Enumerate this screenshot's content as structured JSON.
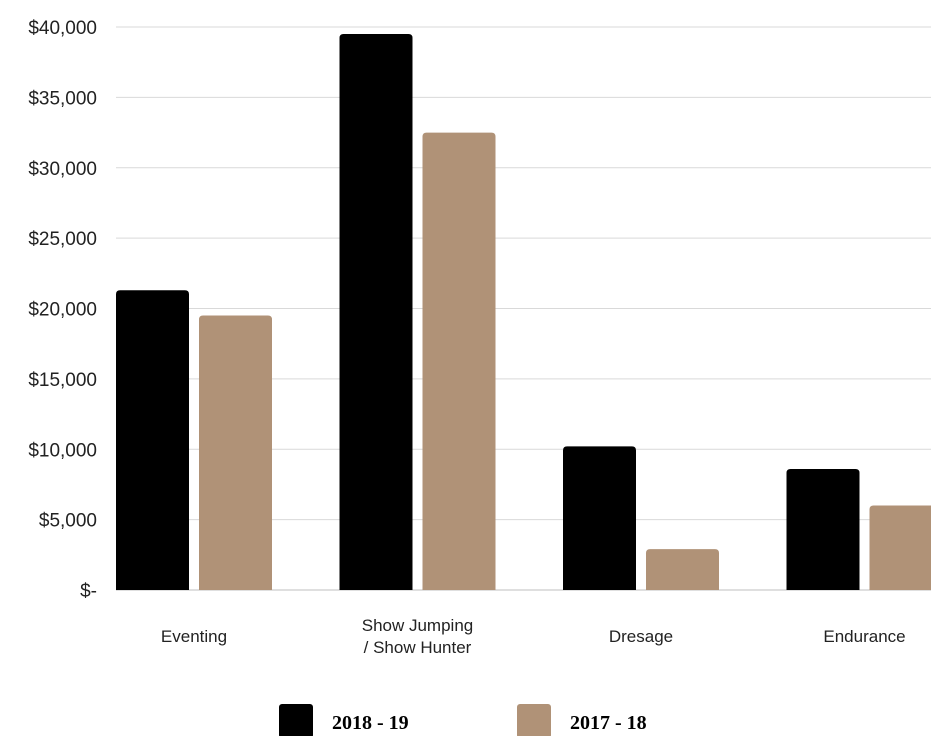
{
  "chart_data": {
    "type": "bar",
    "categories": [
      [
        "Eventing"
      ],
      [
        "Show Jumping",
        "/ Show Hunter"
      ],
      [
        "Dresage"
      ],
      [
        "Endurance"
      ]
    ],
    "series": [
      {
        "name": "2018 - 19",
        "color": "#000000",
        "values": [
          21300,
          39500,
          10200,
          8600
        ]
      },
      {
        "name": "2017 - 18",
        "color": "#b09277",
        "values": [
          19500,
          32500,
          2900,
          6000
        ]
      }
    ],
    "y_ticks": [
      "$-",
      "$5,000",
      "$10,000",
      "$15,000",
      "$20,000",
      "$25,000",
      "$30,000",
      "$35,000",
      "$40,000"
    ],
    "ylim": [
      0,
      40000
    ],
    "grid": true,
    "legend_position": "bottom-center",
    "title": "",
    "xlabel": "",
    "ylabel": ""
  }
}
